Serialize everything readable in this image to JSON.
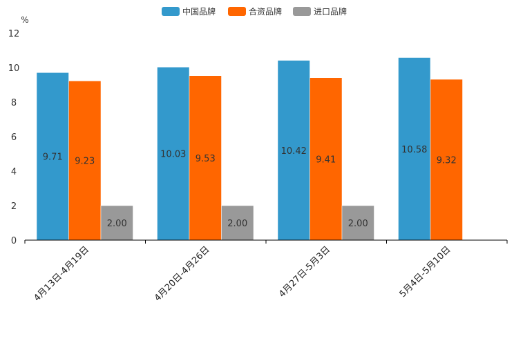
{
  "chart_data": {
    "type": "bar",
    "title": "",
    "xlabel": "",
    "ylabel": "%",
    "ylim": [
      0,
      12
    ],
    "yticks": [
      0,
      2,
      4,
      6,
      8,
      10,
      12
    ],
    "grid": false,
    "legend_position": "top-center",
    "categories": [
      "4月13日-4月19日",
      "4月20日-4月26日",
      "4月27日-5月3日",
      "5月4日-5月10日"
    ],
    "series": [
      {
        "name": "中国品牌",
        "color": "#3399cc",
        "values": [
          9.71,
          10.03,
          10.42,
          10.58
        ],
        "labels": [
          "9.71",
          "10.03",
          "10.42",
          "10.58"
        ]
      },
      {
        "name": "合资品牌",
        "color": "#ff6600",
        "values": [
          9.23,
          9.53,
          9.41,
          9.32
        ],
        "labels": [
          "9.23",
          "9.53",
          "9.41",
          "9.32"
        ]
      },
      {
        "name": "进口品牌",
        "color": "#999999",
        "values": [
          2.0,
          2.0,
          2.0,
          null
        ],
        "labels": [
          "2.00",
          "2.00",
          "2.00",
          null
        ]
      }
    ]
  }
}
